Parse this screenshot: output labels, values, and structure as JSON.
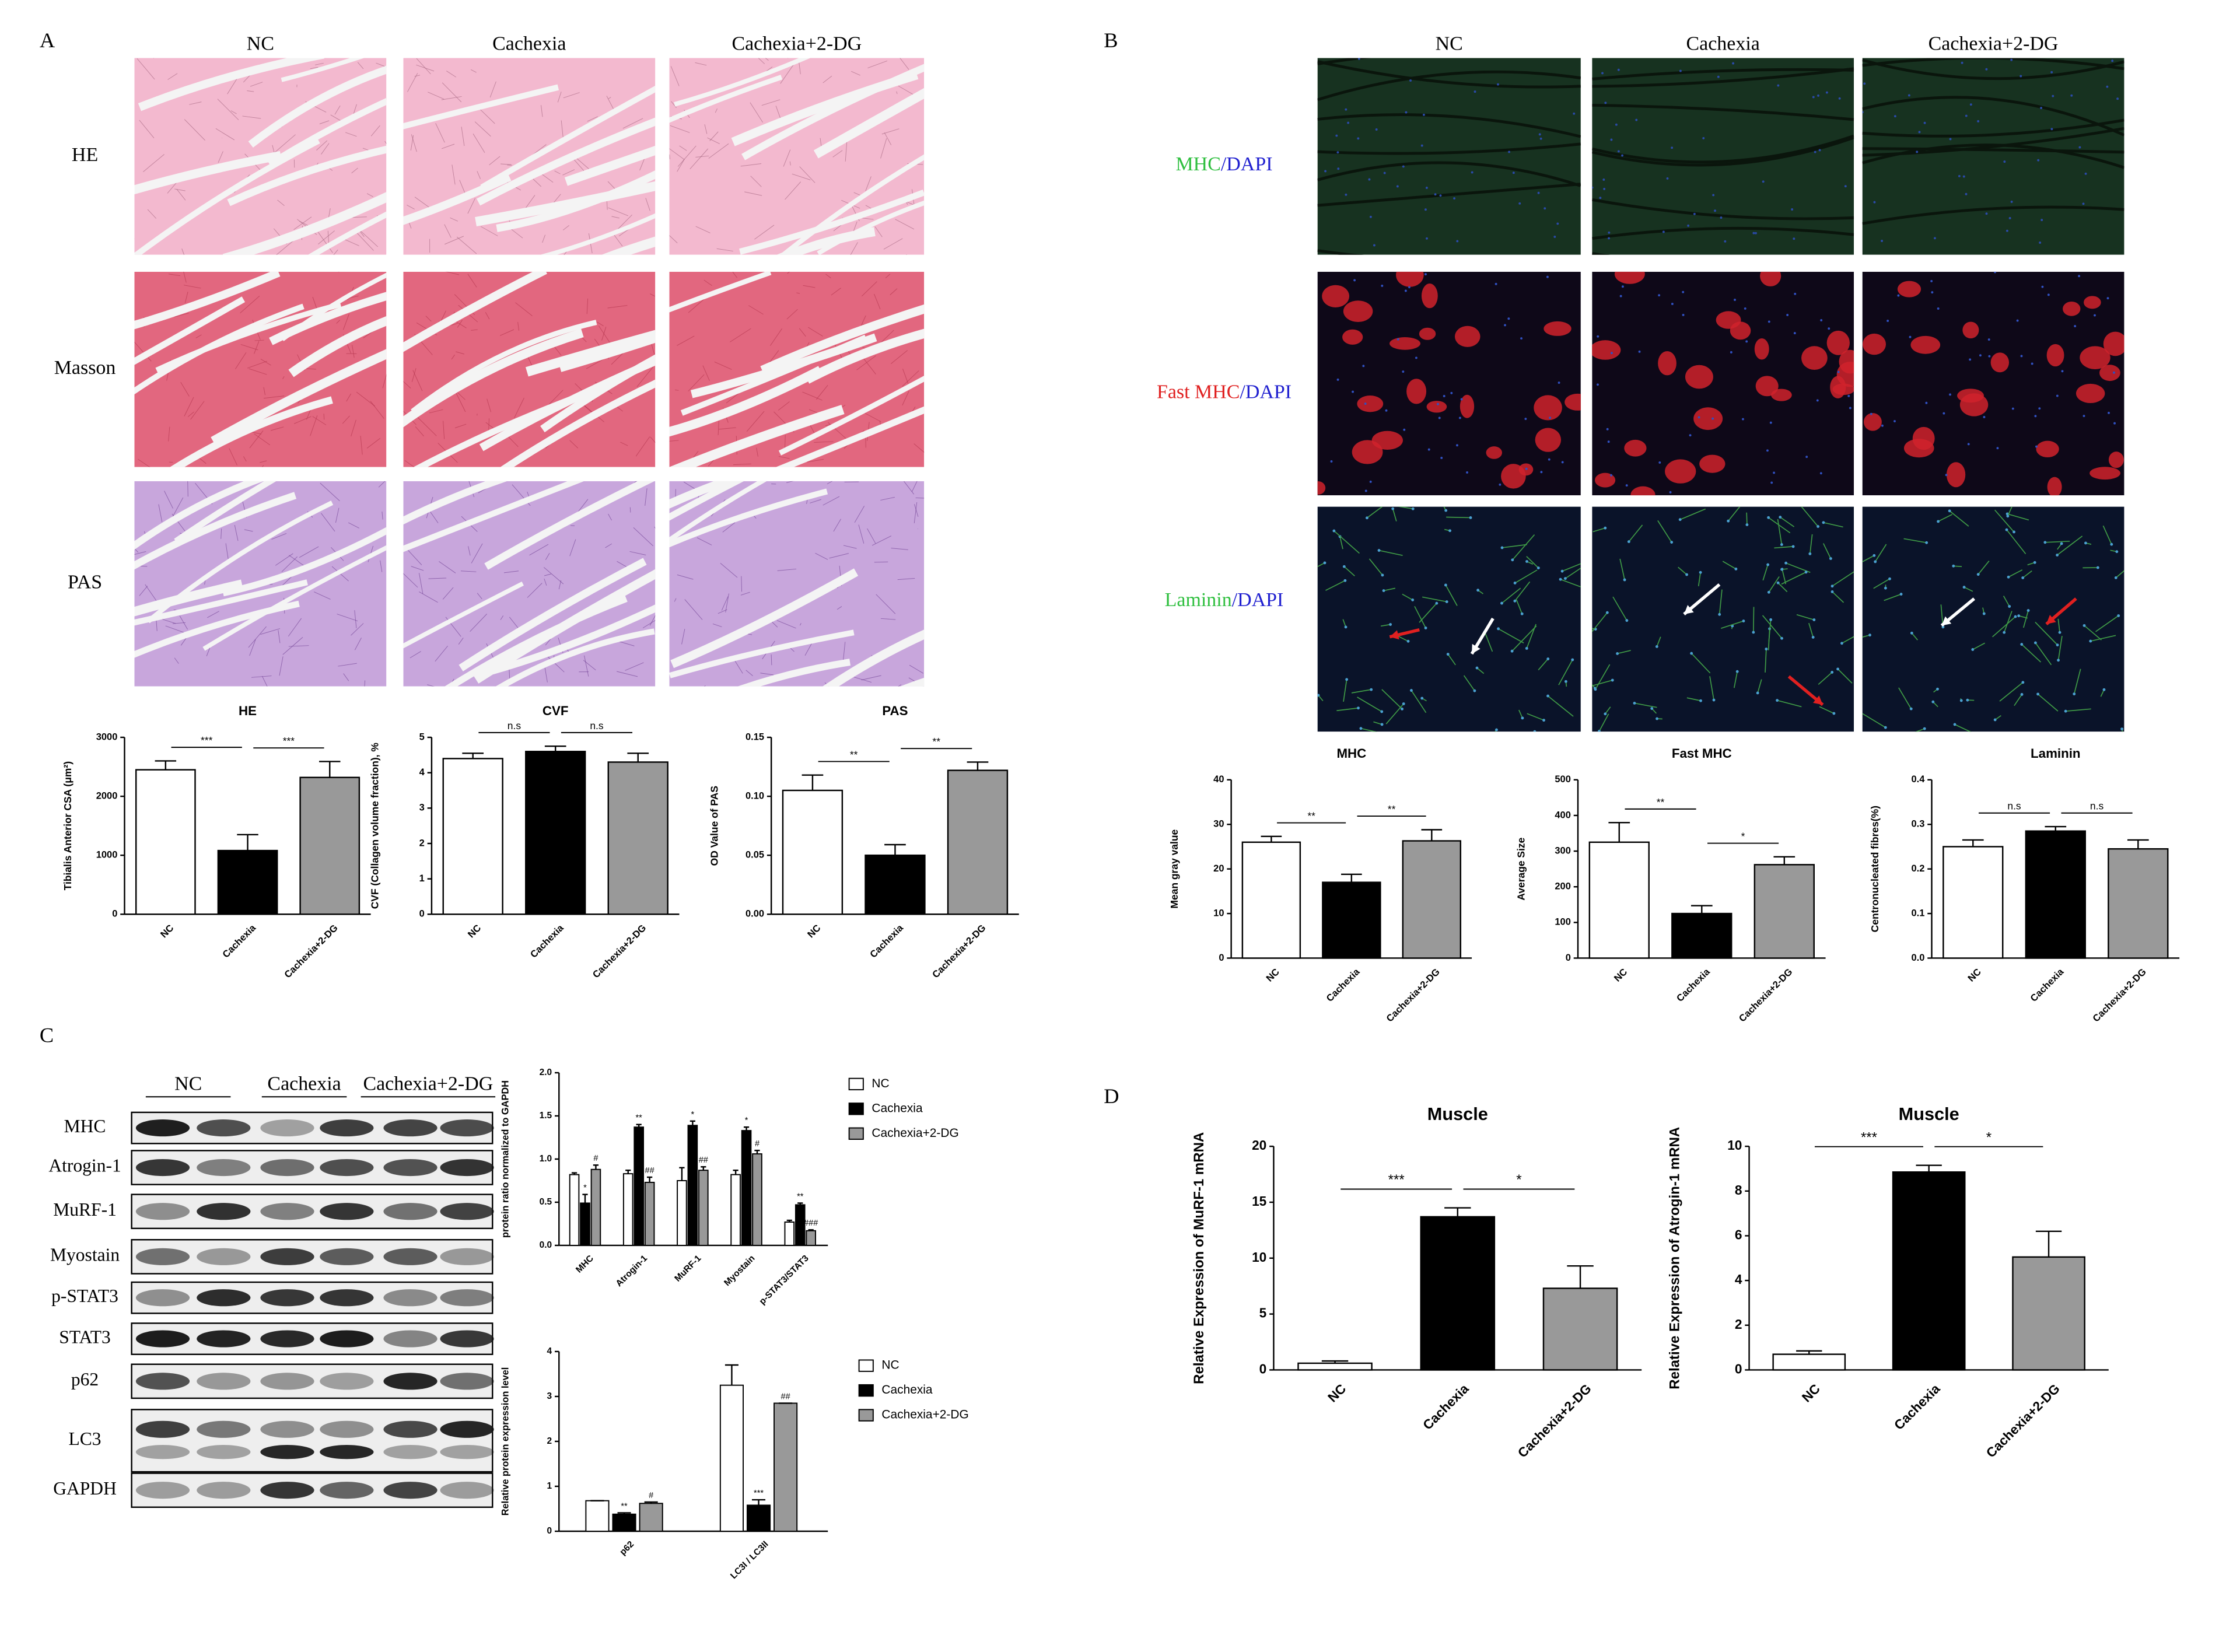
{
  "panels": {
    "A": {
      "letter": "A",
      "columns": [
        "NC",
        "Cachexia",
        "Cachexia+2-DG"
      ],
      "rows": [
        "HE",
        "Masson",
        "PAS"
      ]
    },
    "B": {
      "letter": "B",
      "columns": [
        "NC",
        "Cachexia",
        "Cachexia+2-DG"
      ],
      "rows": [
        [
          "MHC",
          "/DAPI"
        ],
        [
          "Fast MHC",
          "/DAPI"
        ],
        [
          "Laminin",
          "/DAPI"
        ]
      ]
    },
    "C": {
      "letter": "C",
      "groups": [
        "NC",
        "Cachexia",
        "Cachexia+2-DG"
      ],
      "proteins": [
        "MHC",
        "Atrogin-1",
        "MuRF-1",
        "Myostain",
        "p-STAT3",
        "STAT3",
        "p62",
        "LC3",
        "GAPDH"
      ]
    },
    "D": {
      "letter": "D"
    }
  },
  "chart_data": [
    {
      "type": "bar",
      "title": "HE",
      "y_label": "Tibialis Anterior CSA (μm²)",
      "categories": [
        "NC",
        "Cachexia",
        "Cachexia+2-DG"
      ],
      "values": [
        2450,
        1080,
        2320
      ],
      "errors": [
        150,
        270,
        270
      ],
      "colors": [
        "#ffffff",
        "#000000",
        "#999999"
      ],
      "ylim": [
        0,
        3000
      ],
      "yticks": [
        0,
        1000,
        2000,
        3000
      ],
      "annotations": [
        "***",
        "***"
      ]
    },
    {
      "type": "bar",
      "title": "CVF",
      "y_label": "CVF (Collagen volume fraction), %",
      "categories": [
        "NC",
        "Cachexia",
        "Cachexia+2-DG"
      ],
      "values": [
        4.4,
        4.6,
        4.3
      ],
      "errors": [
        0.15,
        0.15,
        0.25
      ],
      "colors": [
        "#ffffff",
        "#000000",
        "#999999"
      ],
      "ylim": [
        0,
        5
      ],
      "yticks": [
        0,
        1,
        2,
        3,
        4,
        5
      ],
      "annotations": [
        "n.s",
        "n.s"
      ]
    },
    {
      "type": "bar",
      "title": "PAS",
      "y_label": "OD Value of PAS",
      "categories": [
        "NC",
        "Cachexia",
        "Cachexia+2-DG"
      ],
      "values": [
        0.105,
        0.05,
        0.122
      ],
      "errors": [
        0.013,
        0.009,
        0.007
      ],
      "colors": [
        "#ffffff",
        "#000000",
        "#999999"
      ],
      "ylim": [
        0,
        0.15
      ],
      "yticks": [
        {
          "value": 0,
          "label": "0.00"
        },
        {
          "value": 0.05,
          "label": "0.05"
        },
        {
          "value": 0.1,
          "label": "0.10"
        },
        {
          "value": 0.15,
          "label": "0.15"
        }
      ],
      "annotations": [
        "**",
        "**"
      ]
    },
    {
      "type": "bar",
      "title": "MHC",
      "y_label": "Mean gray value",
      "categories": [
        "NC",
        "Cachexia",
        "Cachexia+2-DG"
      ],
      "values": [
        26,
        17,
        26.3
      ],
      "errors": [
        1.3,
        1.8,
        2.5
      ],
      "colors": [
        "#ffffff",
        "#000000",
        "#999999"
      ],
      "ylim": [
        0,
        40
      ],
      "yticks": [
        0,
        10,
        20,
        30,
        40
      ],
      "annotations": [
        "**",
        "**"
      ]
    },
    {
      "type": "bar",
      "title": "Fast MHC",
      "y_label": "Average Size",
      "categories": [
        "NC",
        "Cachexia",
        "Cachexia+2-DG"
      ],
      "values": [
        325,
        125,
        262
      ],
      "errors": [
        55,
        22,
        22
      ],
      "colors": [
        "#ffffff",
        "#000000",
        "#999999"
      ],
      "ylim": [
        0,
        500
      ],
      "yticks": [
        0,
        100,
        200,
        300,
        400,
        500
      ],
      "annotations": [
        "**",
        "*"
      ]
    },
    {
      "type": "bar",
      "title": "Laminin",
      "y_label": "Centronucleated fibres(%)",
      "categories": [
        "NC",
        "Cachexia",
        "Cachexia+2-DG"
      ],
      "values": [
        0.25,
        0.285,
        0.245
      ],
      "errors": [
        0.015,
        0.01,
        0.02
      ],
      "colors": [
        "#ffffff",
        "#000000",
        "#999999"
      ],
      "ylim": [
        0,
        0.4
      ],
      "yticks": [
        {
          "value": 0,
          "label": "0.0"
        },
        {
          "value": 0.1,
          "label": "0.1"
        },
        {
          "value": 0.2,
          "label": "0.2"
        },
        {
          "value": 0.3,
          "label": "0.3"
        },
        {
          "value": 0.4,
          "label": "0.4"
        }
      ],
      "annotations": [
        "n.s",
        "n.s"
      ]
    },
    {
      "type": "grouped_bar",
      "y_label": "protein ratio normalized to GAPDH",
      "categories": [
        "MHC",
        "Atrogin-1",
        "MuRF-1",
        "Myostain",
        "p-STAT3/STAT3"
      ],
      "series": [
        {
          "name": "NC",
          "color": "#ffffff",
          "values": [
            0.82,
            0.83,
            0.75,
            0.82,
            0.27
          ],
          "errors": [
            0.02,
            0.04,
            0.15,
            0.05,
            0.02
          ]
        },
        {
          "name": "Cachexia",
          "color": "#000000",
          "values": [
            0.49,
            1.37,
            1.39,
            1.33,
            0.47
          ],
          "errors": [
            0.1,
            0.03,
            0.05,
            0.04,
            0.02
          ],
          "annotations": [
            "*",
            "**",
            "*",
            "*",
            "**"
          ]
        },
        {
          "name": "Cachexia+2-DG",
          "color": "#999999",
          "values": [
            0.88,
            0.73,
            0.87,
            1.06,
            0.17
          ],
          "errors": [
            0.05,
            0.06,
            0.04,
            0.04,
            0.01
          ],
          "annotations": [
            "#",
            "##",
            "##",
            "#",
            "###"
          ]
        }
      ],
      "ylim": [
        0,
        2
      ],
      "yticks": [
        {
          "value": 0,
          "label": "0.0"
        },
        {
          "value": 0.5,
          "label": "0.5"
        },
        {
          "value": 1,
          "label": "1.0"
        },
        {
          "value": 1.5,
          "label": "1.5"
        },
        {
          "value": 2,
          "label": "2.0"
        }
      ],
      "legend": "right"
    },
    {
      "type": "grouped_bar",
      "y_label": "Relative protein expression level",
      "categories": [
        "p62",
        "LC3I / LC3II"
      ],
      "series": [
        {
          "name": "NC",
          "color": "#ffffff",
          "values": [
            0.68,
            3.25
          ],
          "errors": [
            0,
            0.45
          ]
        },
        {
          "name": "Cachexia",
          "color": "#000000",
          "values": [
            0.38,
            0.58
          ],
          "errors": [
            0.03,
            0.12
          ],
          "annotations": [
            "**",
            "***"
          ]
        },
        {
          "name": "Cachexia+2-DG",
          "color": "#999999",
          "values": [
            0.62,
            2.85
          ],
          "errors": [
            0.03,
            0
          ],
          "annotations": [
            "#",
            "##"
          ]
        }
      ],
      "ylim": [
        0,
        4
      ],
      "yticks": [
        0,
        1,
        2,
        3,
        4
      ],
      "legend": "right"
    },
    {
      "type": "bar",
      "title": "Muscle",
      "y_label": "Relative Expression of MuRF-1 mRNA",
      "categories": [
        "NC",
        "Cachexia",
        "Cachexia+2-DG"
      ],
      "values": [
        0.6,
        13.7,
        7.3
      ],
      "errors": [
        0.2,
        0.8,
        2.0
      ],
      "colors": [
        "#ffffff",
        "#000000",
        "#999999"
      ],
      "ylim": [
        0,
        20
      ],
      "yticks": [
        0,
        5,
        10,
        15,
        20
      ],
      "annotations": [
        "***",
        "*"
      ]
    },
    {
      "type": "bar",
      "title": "Muscle",
      "y_label": "Relative Expression of Atrogin-1 mRNA",
      "categories": [
        "NC",
        "Cachexia",
        "Cachexia+2-DG"
      ],
      "values": [
        0.7,
        8.85,
        5.05
      ],
      "errors": [
        0.15,
        0.3,
        1.15
      ],
      "colors": [
        "#ffffff",
        "#000000",
        "#999999"
      ],
      "ylim": [
        0,
        10
      ],
      "yticks": [
        0,
        2,
        4,
        6,
        8,
        10
      ],
      "annotations": [
        "***",
        "*"
      ]
    }
  ]
}
